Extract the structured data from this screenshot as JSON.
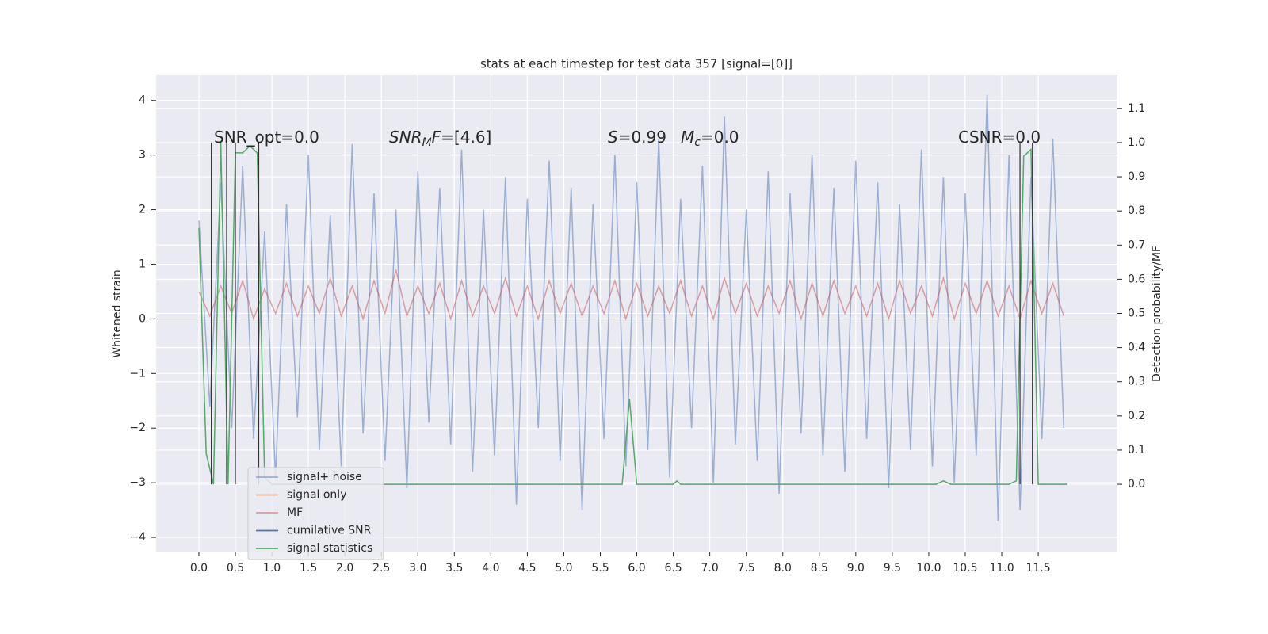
{
  "chart_data": {
    "type": "line",
    "title": "stats at each timestep for test data 357 [signal=[0]]",
    "y_label": "Whitened strain",
    "y2_label": "Detection probability/MF",
    "xlim": [
      -0.586,
      12.585
    ],
    "ylim": [
      -4.26,
      4.46
    ],
    "y2lim": [
      -0.197,
      1.197
    ],
    "xticks": [
      {
        "value": 0,
        "label": "0.0"
      },
      0.5,
      {
        "value": 1,
        "label": "1.0"
      },
      1.5,
      {
        "value": 2,
        "label": "2.0"
      },
      2.5,
      {
        "value": 3,
        "label": "3.0"
      },
      3.5,
      {
        "value": 4,
        "label": "4.0"
      },
      4.5,
      {
        "value": 5,
        "label": "5.0"
      },
      5.5,
      {
        "value": 6,
        "label": "6.0"
      },
      6.5,
      {
        "value": 7,
        "label": "7.0"
      },
      7.5,
      {
        "value": 8,
        "label": "8.0"
      },
      8.5,
      {
        "value": 9,
        "label": "9.0"
      },
      9.5,
      {
        "value": 10,
        "label": "10.0"
      },
      10.5,
      {
        "value": 11,
        "label": "11.0"
      },
      11.5
    ],
    "yticks": [
      {
        "value": -4,
        "label": "−4"
      },
      {
        "value": -3,
        "label": "−3"
      },
      {
        "value": -2,
        "label": "−2"
      },
      {
        "value": -1,
        "label": "−1"
      },
      0,
      1,
      2,
      3,
      4
    ],
    "y2ticks": [
      {
        "value": 0,
        "label": "0.0"
      },
      0.1,
      0.2,
      0.3,
      0.4,
      0.5,
      0.6,
      0.7,
      0.8,
      0.9,
      {
        "value": 1,
        "label": "1.0"
      },
      1.1
    ],
    "grid": true,
    "background": "#eaeaf2",
    "legend": "lower left",
    "annotations": [
      {
        "parts": [
          {
            "text": "SNR_opt=0.0",
            "style": "normal"
          }
        ]
      },
      {
        "parts": [
          {
            "text": "SNR",
            "style": "italic"
          },
          {
            "text": "M",
            "style": "sub"
          },
          {
            "text": "F",
            "style": "italic"
          },
          {
            "text": "=[4.6]",
            "style": "normal"
          }
        ]
      },
      {
        "parts": [
          {
            "text": "S",
            "style": "italic"
          },
          {
            "text": "=0.99",
            "style": "normal"
          }
        ]
      },
      {
        "parts": [
          {
            "text": "M",
            "style": "italic"
          },
          {
            "text": "c",
            "style": "sub"
          },
          {
            "text": "=0.0",
            "style": "normal"
          }
        ]
      },
      {
        "parts": [
          {
            "text": "CSNR=0.0",
            "style": "normal"
          }
        ]
      }
    ],
    "series": [
      {
        "name": "signal+ noise",
        "color": "#4c72b0",
        "alpha": 0.5,
        "axis": "y",
        "x": [
          0,
          0.15,
          0.3,
          0.45,
          0.6,
          0.75,
          0.9,
          1.05,
          1.2,
          1.35,
          1.5,
          1.65,
          1.8,
          1.95,
          2.1,
          2.25,
          2.4,
          2.55,
          2.7,
          2.85,
          3,
          3.15,
          3.3,
          3.45,
          3.6,
          3.75,
          3.9,
          4.05,
          4.2,
          4.35,
          4.5,
          4.65,
          4.8,
          4.95,
          5.1,
          5.25,
          5.4,
          5.55,
          5.7,
          5.85,
          6,
          6.15,
          6.3,
          6.45,
          6.6,
          6.75,
          6.9,
          7.05,
          7.2,
          7.35,
          7.5,
          7.65,
          7.8,
          7.95,
          8.1,
          8.25,
          8.4,
          8.55,
          8.7,
          8.85,
          9,
          9.15,
          9.3,
          9.45,
          9.6,
          9.75,
          9.9,
          10.05,
          10.2,
          10.35,
          10.5,
          10.65,
          10.8,
          10.95,
          11.1,
          11.25,
          11.4,
          11.55,
          11.7,
          11.85
        ],
        "values": [
          1.8,
          -1.6,
          2.5,
          -2.0,
          2.8,
          -2.2,
          1.6,
          -2.9,
          2.1,
          -1.8,
          3.0,
          -2.4,
          1.9,
          -2.7,
          3.2,
          -2.1,
          2.3,
          -2.6,
          2.0,
          -3.1,
          2.7,
          -1.9,
          2.4,
          -2.3,
          3.1,
          -2.8,
          2.0,
          -2.5,
          2.6,
          -3.4,
          2.2,
          -2.0,
          2.9,
          -2.6,
          2.4,
          -3.5,
          2.1,
          -2.2,
          3.0,
          -2.7,
          2.5,
          -2.4,
          3.3,
          -2.9,
          2.2,
          -2.0,
          2.8,
          -3.0,
          3.7,
          -2.3,
          2.0,
          -2.6,
          2.7,
          -3.2,
          2.3,
          -2.1,
          3.0,
          -2.5,
          2.4,
          -2.8,
          2.9,
          -2.2,
          2.5,
          -3.1,
          2.1,
          -2.4,
          3.1,
          -2.7,
          2.6,
          -3.0,
          2.3,
          -2.5,
          4.1,
          -3.7,
          3.0,
          -3.5,
          2.6,
          -2.2,
          3.3,
          -2.0
        ]
      },
      {
        "name": "signal only",
        "color": "#dd8452",
        "alpha": 0.6,
        "axis": "y"
      },
      {
        "name": "MF",
        "color": "#c44e52",
        "alpha": 0.5,
        "axis": "y",
        "x": [
          0,
          0.15,
          0.3,
          0.45,
          0.6,
          0.75,
          0.9,
          1.05,
          1.2,
          1.35,
          1.5,
          1.65,
          1.8,
          1.95,
          2.1,
          2.25,
          2.4,
          2.55,
          2.7,
          2.85,
          3,
          3.15,
          3.3,
          3.45,
          3.6,
          3.75,
          3.9,
          4.05,
          4.2,
          4.35,
          4.5,
          4.65,
          4.8,
          4.95,
          5.1,
          5.25,
          5.4,
          5.55,
          5.7,
          5.85,
          6,
          6.15,
          6.3,
          6.45,
          6.6,
          6.75,
          6.9,
          7.05,
          7.2,
          7.35,
          7.5,
          7.65,
          7.8,
          7.95,
          8.1,
          8.25,
          8.4,
          8.55,
          8.7,
          8.85,
          9,
          9.15,
          9.3,
          9.45,
          9.6,
          9.75,
          9.9,
          10.05,
          10.2,
          10.35,
          10.5,
          10.65,
          10.8,
          10.95,
          11.1,
          11.25,
          11.4,
          11.55,
          11.7,
          11.85
        ],
        "values": [
          0.5,
          0.05,
          0.6,
          0.1,
          0.7,
          0.0,
          0.55,
          0.1,
          0.65,
          0.05,
          0.6,
          0.1,
          0.75,
          0.05,
          0.6,
          0.0,
          0.7,
          0.1,
          0.9,
          0.05,
          0.6,
          0.1,
          0.65,
          0.0,
          0.7,
          0.05,
          0.6,
          0.1,
          0.75,
          0.05,
          0.6,
          0.0,
          0.7,
          0.1,
          0.65,
          0.05,
          0.6,
          0.1,
          0.7,
          0.0,
          0.65,
          0.05,
          0.6,
          0.1,
          0.7,
          0.05,
          0.6,
          0.0,
          0.75,
          0.1,
          0.65,
          0.05,
          0.6,
          0.1,
          0.7,
          0.0,
          0.65,
          0.05,
          0.7,
          0.1,
          0.6,
          0.05,
          0.65,
          0.0,
          0.7,
          0.1,
          0.6,
          0.05,
          0.75,
          0.0,
          0.65,
          0.1,
          0.7,
          0.05,
          0.6,
          0.0,
          0.7,
          0.1,
          0.65,
          0.05
        ]
      },
      {
        "name": "cumilative SNR",
        "color": "#4c72b0",
        "alpha": 1,
        "axis": "y"
      },
      {
        "name": "signal statistics",
        "color": "#55a868",
        "alpha": 1,
        "axis": "y2",
        "x": [
          0,
          0.1,
          0.2,
          0.3,
          0.4,
          0.5,
          0.6,
          0.7,
          0.8,
          0.9,
          1.0,
          5.8,
          5.9,
          6.0,
          6.5,
          6.55,
          6.6,
          10.1,
          10.2,
          10.3,
          11.1,
          11.2,
          11.3,
          11.4,
          11.5,
          11.6,
          11.9
        ],
        "values": [
          0.75,
          0.09,
          0.0,
          1.0,
          0.0,
          0.97,
          0.97,
          0.99,
          0.97,
          0.02,
          0.0,
          0.0,
          0.25,
          0.0,
          0.0,
          0.01,
          0.0,
          0.0,
          0.01,
          0.0,
          0.0,
          0.01,
          0.96,
          0.98,
          0.0,
          0.0,
          0.0
        ]
      }
    ],
    "vertical_lines": {
      "color": "#333333",
      "axis": "y2",
      "x": [
        0.17,
        0.38,
        0.5,
        0.82,
        11.25,
        11.42
      ],
      "span": [
        0,
        1
      ]
    }
  }
}
